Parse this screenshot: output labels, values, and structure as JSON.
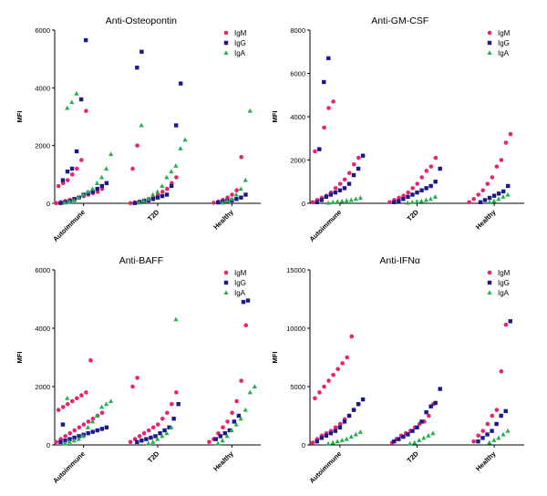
{
  "colors": {
    "IgM": "#e8246e",
    "IgG": "#1a1a8c",
    "IgA": "#22b04b"
  },
  "chart_data": [
    {
      "type": "scatter",
      "title": "Anti-Osteopontin",
      "ylabel": "MFI",
      "ylim": [
        0,
        6000
      ],
      "yticks": [
        "0",
        "2000",
        "4000",
        "6000"
      ],
      "categories": [
        "Autoimmune",
        "T2D",
        "Healthy"
      ],
      "legend": [
        "IgM",
        "IgG",
        "IgA"
      ],
      "series": [
        {
          "name": "IgM",
          "groups": [
            [
              5,
              40,
              80,
              120,
              150,
              200,
              250,
              300,
              350,
              400,
              500,
              600,
              700,
              800,
              1000,
              1200,
              1500,
              3200
            ],
            [
              5,
              30,
              60,
              100,
              150,
              200,
              300,
              400,
              500,
              700,
              900,
              1200,
              2000
            ],
            [
              20,
              60,
              120,
              200,
              300,
              450,
              1600
            ]
          ]
        },
        {
          "name": "IgG",
          "groups": [
            [
              10,
              40,
              80,
              150,
              200,
              300,
              350,
              400,
              500,
              600,
              700,
              800,
              1100,
              1200,
              1800,
              3600,
              5650
            ],
            [
              10,
              40,
              80,
              100,
              150,
              200,
              250,
              300,
              600,
              2700,
              4150,
              4700,
              5250
            ],
            [
              30,
              60,
              90,
              100,
              150,
              200,
              300
            ]
          ]
        },
        {
          "name": "IgA",
          "groups": [
            [
              20,
              60,
              100,
              200,
              300,
              400,
              500,
              700,
              900,
              1200,
              1700,
              3300,
              3500,
              3800
            ],
            [
              20,
              80,
              150,
              300,
              400,
              600,
              900,
              1100,
              1300,
              1900,
              2200,
              2700
            ],
            [
              20,
              80,
              150,
              300,
              500,
              800,
              3200
            ]
          ]
        }
      ]
    },
    {
      "type": "scatter",
      "title": "Anti-GM-CSF",
      "ylabel": "MFI",
      "ylim": [
        0,
        8000
      ],
      "yticks": [
        "0",
        "2000",
        "4000",
        "6000",
        "8000"
      ],
      "categories": [
        "Autoimmune",
        "T2D",
        "Healthy"
      ],
      "legend": [
        "IgM",
        "IgG",
        "IgA"
      ],
      "series": [
        {
          "name": "IgM",
          "groups": [
            [
              50,
              150,
              250,
              350,
              500,
              700,
              900,
              1100,
              1400,
              1800,
              2100,
              2400,
              2500,
              3500,
              4400,
              4700
            ],
            [
              50,
              150,
              250,
              350,
              500,
              700,
              900,
              1200,
              1500,
              1700,
              2100
            ],
            [
              50,
              200,
              400,
              600,
              900,
              1200,
              1700,
              2000,
              2800,
              3200
            ]
          ]
        },
        {
          "name": "IgG",
          "groups": [
            [
              50,
              150,
              300,
              400,
              500,
              600,
              700,
              900,
              1300,
              1600,
              2200,
              2500,
              5600,
              6700
            ],
            [
              50,
              100,
              200,
              300,
              400,
              500,
              600,
              700,
              800,
              1000,
              1600
            ],
            [
              50,
              150,
              250,
              350,
              450,
              550,
              800
            ]
          ]
        },
        {
          "name": "IgA",
          "groups": [
            [
              20,
              50,
              80,
              100,
              120,
              150,
              200,
              250
            ],
            [
              20,
              50,
              80,
              100,
              150,
              200,
              300
            ],
            [
              50,
              100,
              200,
              300,
              400
            ]
          ]
        }
      ]
    },
    {
      "type": "scatter",
      "title": "Anti-BAFF",
      "ylabel": "MFI",
      "ylim": [
        0,
        6000
      ],
      "yticks": [
        "0",
        "2000",
        "4000",
        "6000"
      ],
      "categories": [
        "Autoimmune",
        "T2D",
        "Healthy"
      ],
      "legend": [
        "IgM",
        "IgG",
        "IgA"
      ],
      "series": [
        {
          "name": "IgM",
          "groups": [
            [
              100,
              200,
              300,
              400,
              500,
              600,
              700,
              800,
              900,
              1000,
              1100,
              1200,
              1300,
              1400,
              1500,
              1600,
              1700,
              1800,
              2900
            ],
            [
              100,
              200,
              300,
              400,
              500,
              600,
              700,
              900,
              1100,
              1400,
              1800,
              2000,
              2300
            ],
            [
              100,
              200,
              400,
              600,
              800,
              1100,
              1500,
              2200,
              4100
            ]
          ]
        },
        {
          "name": "IgG",
          "groups": [
            [
              100,
              150,
              200,
              250,
              300,
              350,
              400,
              450,
              500,
              550,
              600,
              700
            ],
            [
              100,
              150,
              200,
              250,
              300,
              400,
              500,
              600,
              900,
              1400
            ],
            [
              200,
              300,
              400,
              500,
              800,
              1000,
              4900,
              4950
            ]
          ]
        },
        {
          "name": "IgA",
          "groups": [
            [
              50,
              100,
              150,
              200,
              300,
              600,
              800,
              1000,
              1300,
              1400,
              1500,
              1600
            ],
            [
              50,
              100,
              200,
              300,
              400,
              600,
              4300
            ],
            [
              50,
              150,
              300,
              500,
              700,
              900,
              1200,
              1800,
              2000
            ]
          ]
        }
      ]
    },
    {
      "type": "scatter",
      "title": "Anti-IFNα",
      "ylabel": "MFI",
      "ylim": [
        0,
        15000
      ],
      "yticks": [
        "0",
        "5000",
        "10000",
        "15000"
      ],
      "categories": [
        "Autoimmune",
        "T2D",
        "Healthy"
      ],
      "legend": [
        "IgM",
        "IgG",
        "IgA"
      ],
      "series": [
        {
          "name": "IgM",
          "groups": [
            [
              200,
              500,
              800,
              1000,
              1200,
              1500,
              1800,
              2200,
              2500,
              3000,
              3500,
              4000,
              4500,
              5000,
              5500,
              6000,
              6500,
              7000,
              7500,
              9300
            ],
            [
              200,
              500,
              800,
              1000,
              1200,
              1500,
              1800,
              2000,
              2500,
              3500
            ],
            [
              300,
              800,
              1200,
              1800,
              2500,
              3000,
              6300,
              10300
            ]
          ]
        },
        {
          "name": "IgG",
          "groups": [
            [
              300,
              600,
              800,
              1000,
              1200,
              1500,
              2000,
              2500,
              3000,
              3500,
              3900
            ],
            [
              300,
              500,
              700,
              900,
              1200,
              1500,
              2000,
              2800,
              3300,
              3600,
              4800
            ],
            [
              300,
              600,
              900,
              1200,
              1800,
              2500,
              2900,
              10600
            ]
          ]
        },
        {
          "name": "IgA",
          "groups": [
            [
              100,
              200,
              300,
              400,
              500,
              700,
              900,
              1100
            ],
            [
              100,
              200,
              400,
              600,
              800,
              1000
            ],
            [
              200,
              400,
              600,
              900,
              1200
            ]
          ]
        }
      ]
    }
  ]
}
